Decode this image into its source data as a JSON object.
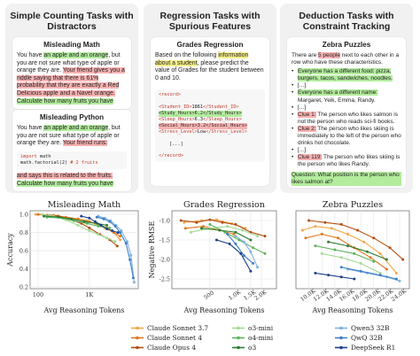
{
  "panels": {
    "counting": {
      "title_l1": "Simple Counting Tasks with",
      "title_l2": "Distractors",
      "math": {
        "title": "Misleading Math",
        "t1": "You have ",
        "h1": "an apple and an orange",
        "t2": ", but you are not sure what type of apple or orange they are. ",
        "h2": "Your friend gives you a riddle saying that there is 61% probability that they are exactly a Red Delicious apple and a Navel orange.",
        "t3": " ",
        "h3": "Calculate how many fruits you have"
      },
      "python": {
        "title": "Misleading Python",
        "t1": "You have ",
        "h1": "an apple and an orange",
        "t2": ", but you are not sure what type of apple or orange they are. ",
        "h2": "Your friend runs:",
        "code_l1_kw": "import",
        "code_l1": " math",
        "code_l2": "math.factorial(2) ",
        "code_l2_kw": "# 2 fruits",
        "h3": "and says this is related to the fruits.",
        "h4": "Calculate how many fruits you have"
      }
    },
    "regression": {
      "title_l1": "Regression Tasks with",
      "title_l2": "Spurious Features",
      "card_title": "Grades Regression",
      "t1": "Based on the following ",
      "h1": "information about a student",
      "t2": ", please predict the value of Grades for the student between 0 and 10.",
      "rec_open": "<record>",
      "l1a": "<Student_ID>",
      "l1v": "1861",
      "l1b": "</Student_ID>",
      "l2a": "<Study_Hours>",
      "l2v": "6.2",
      "l2b": "</Study_Hours>",
      "l3a": "<Sleep_Hours>",
      "l3v": "6.3",
      "l3b": "</Sleep_Hours>",
      "l4a": "<Social_Hours>",
      "l4v": "3.2",
      "l4b": "</Social_Hours>",
      "l5a": "<Stress_Level>",
      "l5v": "Low",
      "l5b": "</Stress_Level>",
      "ellipsis": "[...]",
      "rec_close": "</record>"
    },
    "deduction": {
      "title_l1": "Deduction Tasks with",
      "title_l2": "Constraint Tracking",
      "card_title": "Zebra Puzzles",
      "t1": "There are ",
      "h1": "5 people",
      "t2": " next to each other in a row who have these characteristics.",
      "b1": "Everyone has a different food: pizza, burgers, tacos, sandwiches, noodles.",
      "b2": "[...]",
      "b3": "Everyone has a different name:",
      "b3b": "Margaret, Yeik, Emma, Randy.",
      "b4": "[...]",
      "c1": "Clue 1:",
      "c1t": " The person who likes salmon is not the person who reads sci-fi books.",
      "c2": "Clue 2:",
      "c2t": " The person who likes skiing is immediately to the left of the person who drinks hot chocolate.",
      "b7": "[...]",
      "c3": "Clue 119:",
      "c3t": " The person who likes skiing is the person who likes Randy.",
      "q": "Question: What position is the person who likes salmon at?"
    }
  },
  "chart_data": [
    {
      "type": "line",
      "title": "Misleading Math",
      "xlabel": "Avg Reasoning Tokens",
      "ylabel": "Accuracy",
      "xscale": "log",
      "xlim": [
        70,
        9000
      ],
      "ylim": [
        0.18,
        1.04
      ],
      "xticks": [
        {
          "v": 100,
          "label": "100"
        },
        {
          "v": 1000,
          "label": "1K"
        }
      ],
      "yticks": [
        {
          "v": 0.2,
          "label": "0.2"
        },
        {
          "v": 0.4,
          "label": "0.4"
        },
        {
          "v": 0.6,
          "label": "0.6"
        },
        {
          "v": 0.8,
          "label": "0.8"
        },
        {
          "v": 1.0,
          "label": "1.0"
        }
      ],
      "grid": true,
      "series": [
        {
          "key": "sonnet37",
          "x": [
            90,
            150,
            230,
            350,
            600,
            900,
            1300,
            2000,
            3000,
            4000
          ],
          "y": [
            1.0,
            0.99,
            0.98,
            0.96,
            0.95,
            0.93,
            0.9,
            0.85,
            0.8,
            0.72
          ]
        },
        {
          "key": "sonnet4",
          "x": [
            100,
            200,
            350,
            600,
            1000,
            1500,
            2200,
            3000,
            4000
          ],
          "y": [
            1.0,
            0.99,
            0.97,
            0.95,
            0.92,
            0.89,
            0.85,
            0.8,
            0.76
          ]
        },
        {
          "key": "opus4",
          "x": [
            150,
            250,
            400,
            700,
            1000,
            1600,
            2500,
            3500
          ],
          "y": [
            0.99,
            0.98,
            0.95,
            0.9,
            0.85,
            0.78,
            0.72,
            0.65
          ]
        },
        {
          "key": "o3mini",
          "x": [
            120,
            200,
            350,
            600,
            1000,
            1500,
            2200,
            3200
          ],
          "y": [
            1.0,
            0.98,
            0.94,
            0.88,
            0.82,
            0.78,
            0.74,
            0.7
          ]
        },
        {
          "key": "o4mini",
          "x": [
            150,
            300,
            500,
            900,
            1500,
            2500
          ],
          "y": [
            0.97,
            0.96,
            0.93,
            0.9,
            0.87,
            0.85
          ]
        },
        {
          "key": "o3",
          "x": [
            130,
            250,
            450,
            800,
            1400,
            2200
          ],
          "y": [
            0.98,
            0.97,
            0.95,
            0.92,
            0.9,
            0.88
          ]
        },
        {
          "key": "qwen3",
          "x": [
            1500,
            2000,
            2600,
            3300,
            4200,
            5500,
            6500,
            7500
          ],
          "y": [
            0.98,
            0.96,
            0.93,
            0.88,
            0.82,
            0.7,
            0.55,
            0.25
          ]
        },
        {
          "key": "qwq",
          "x": [
            1400,
            1900,
            2500,
            3200,
            4000,
            5200,
            6200,
            7200
          ],
          "y": [
            0.97,
            0.95,
            0.92,
            0.87,
            0.8,
            0.68,
            0.5,
            0.3
          ]
        },
        {
          "key": "r1",
          "x": [
            700,
            1000,
            1300,
            1700,
            2200,
            2800,
            3600
          ],
          "y": [
            0.98,
            0.96,
            0.92,
            0.88,
            0.84,
            0.82,
            0.8
          ]
        }
      ]
    },
    {
      "type": "line",
      "title": "Grades Regression",
      "xlabel": "Avg Reasoning Tokens",
      "ylabel": "Negative RMSE",
      "xscale": "log",
      "xlim": [
        180,
        3000
      ],
      "ylim": [
        -2.75,
        -0.75
      ],
      "xticks": [
        {
          "v": 500,
          "label": "500"
        },
        {
          "v": 1000,
          "label": "1.0K"
        },
        {
          "v": 1500,
          "label": "1.5K"
        },
        {
          "v": 2000,
          "label": "2.0K"
        }
      ],
      "yticks": [
        {
          "v": -2.5,
          "label": "-2.5"
        },
        {
          "v": -2.0,
          "label": "-2.0"
        },
        {
          "v": -1.5,
          "label": "-1.5"
        },
        {
          "v": -1.0,
          "label": "-1.0"
        }
      ],
      "grid": true,
      "series": [
        {
          "key": "sonnet37",
          "x": [
            250,
            400,
            600,
            900,
            1300
          ],
          "y": [
            -1.05,
            -1.0,
            -0.98,
            -1.08,
            -1.2
          ]
        },
        {
          "key": "sonnet4",
          "x": [
            260,
            420,
            650,
            950
          ],
          "y": [
            -1.2,
            -1.15,
            -1.25,
            -1.35
          ]
        },
        {
          "key": "opus4",
          "x": [
            230,
            350,
            500,
            700,
            1000,
            1500,
            2200
          ],
          "y": [
            -1.0,
            -1.05,
            -0.98,
            -1.05,
            -1.1,
            -1.3,
            -1.4
          ]
        },
        {
          "key": "o3mini",
          "x": [
            300,
            500,
            800,
            1200,
            1800
          ],
          "y": [
            -1.3,
            -1.2,
            -1.15,
            -1.25,
            -1.4
          ]
        },
        {
          "key": "o4mini",
          "x": [
            500,
            750,
            1100,
            1600,
            2200
          ],
          "y": [
            -1.1,
            -1.3,
            -1.5,
            -1.7,
            -1.85
          ]
        },
        {
          "key": "o3",
          "x": [
            400,
            650,
            1000,
            1500
          ],
          "y": [
            -1.2,
            -1.25,
            -1.3,
            -1.5
          ]
        },
        {
          "key": "qwen3",
          "x": [
            1000,
            1250,
            1500,
            1800
          ],
          "y": [
            -1.4,
            -1.55,
            -1.8,
            -2.2
          ]
        },
        {
          "key": "qwq",
          "x": [
            800,
            1000,
            1250,
            1600
          ],
          "y": [
            -1.35,
            -1.6,
            -1.9,
            -2.1
          ]
        },
        {
          "key": "r1",
          "x": [
            600,
            850,
            1150,
            1500
          ],
          "y": [
            -1.5,
            -1.6,
            -1.85,
            -2.3
          ]
        }
      ]
    },
    {
      "type": "line",
      "title": "Zebra Puzzles",
      "xlabel": "Avg Reasoning Tokens",
      "ylabel": "",
      "xscale": "linear",
      "xlim": [
        8000,
        25500
      ],
      "ylim": [
        0.12,
        0.52
      ],
      "xticks": [
        {
          "v": 10000,
          "label": "10.0K"
        },
        {
          "v": 12000,
          "label": "12.0K"
        },
        {
          "v": 14000,
          "label": "14.0K"
        },
        {
          "v": 16000,
          "label": "16.0K"
        },
        {
          "v": 18000,
          "label": "18.0K"
        },
        {
          "v": 20000,
          "label": "20.0K"
        },
        {
          "v": 22000,
          "label": "22.0K"
        },
        {
          "v": 24000,
          "label": "24.0K"
        }
      ],
      "yticks": [],
      "grid": true,
      "series": [
        {
          "key": "sonnet37",
          "x": [
            9000,
            11000,
            13500,
            16000,
            18500,
            21000,
            23500
          ],
          "y": [
            0.42,
            0.44,
            0.43,
            0.4,
            0.36,
            0.3,
            0.2
          ]
        },
        {
          "key": "sonnet4",
          "x": [
            9500,
            12000,
            14500,
            17000,
            19500,
            22000
          ],
          "y": [
            0.38,
            0.4,
            0.38,
            0.33,
            0.28,
            0.22
          ]
        },
        {
          "key": "opus4",
          "x": [
            10000,
            12500,
            15000,
            17500,
            20000,
            22500,
            24500
          ],
          "y": [
            0.47,
            0.46,
            0.45,
            0.42,
            0.38,
            0.33,
            0.27
          ]
        },
        {
          "key": "o3mini",
          "x": [
            12000,
            15000,
            18000,
            21000
          ],
          "y": [
            0.3,
            0.28,
            0.25,
            0.2
          ]
        },
        {
          "key": "o4mini",
          "x": [
            11000,
            14000,
            17000,
            20000
          ],
          "y": [
            0.34,
            0.32,
            0.3,
            0.26
          ]
        },
        {
          "key": "o3",
          "x": [
            13000,
            16000,
            19000,
            22000
          ],
          "y": [
            0.36,
            0.34,
            0.31,
            0.27
          ]
        },
        {
          "key": "qwen3",
          "x": [
            16000,
            19000,
            22000,
            24000
          ],
          "y": [
            0.22,
            0.2,
            0.18,
            0.16
          ]
        },
        {
          "key": "qwq",
          "x": [
            15000,
            18000,
            21000,
            23500
          ],
          "y": [
            0.23,
            0.21,
            0.19,
            0.17
          ]
        },
        {
          "key": "r1",
          "x": [
            11000,
            13000,
            15000,
            17000
          ],
          "y": [
            0.2,
            0.19,
            0.18,
            0.17
          ]
        }
      ]
    }
  ],
  "legend": [
    {
      "key": "sonnet37",
      "label": "Claude Sonnet 3.7",
      "color": "#f0a64b"
    },
    {
      "key": "sonnet4",
      "label": "Claude Sonnet 4",
      "color": "#e0761f"
    },
    {
      "key": "opus4",
      "label": "Claude Opus 4",
      "color": "#b34d10"
    },
    {
      "key": "o3mini",
      "label": "o3-mini",
      "color": "#a4d992"
    },
    {
      "key": "o4mini",
      "label": "o4-mini",
      "color": "#5bb45a"
    },
    {
      "key": "o3",
      "label": "o3",
      "color": "#2e7d32"
    },
    {
      "key": "qwen3",
      "label": "Qwen3 32B",
      "color": "#7fb1e0"
    },
    {
      "key": "qwq",
      "label": "QwQ 32B",
      "color": "#3f7fc4"
    },
    {
      "key": "r1",
      "label": "DeepSeek R1",
      "color": "#1e3f8a"
    }
  ]
}
